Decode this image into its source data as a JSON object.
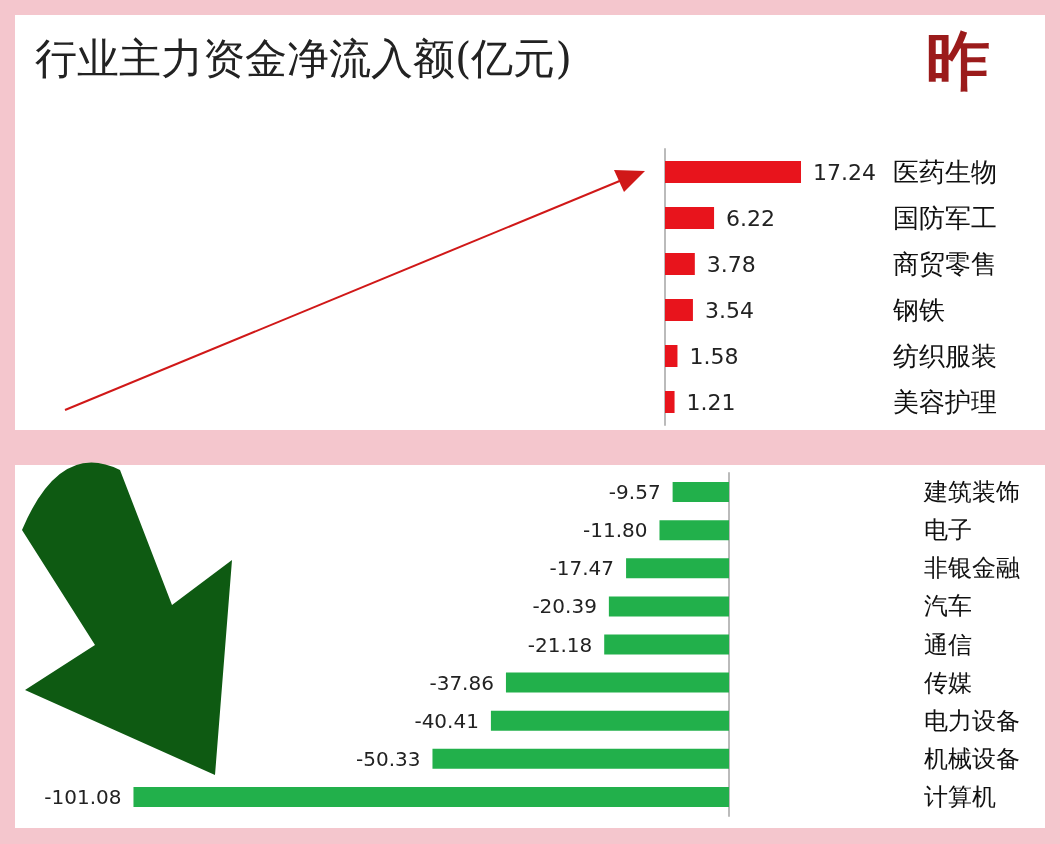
{
  "chart_data": [
    {
      "type": "bar",
      "orientation": "horizontal",
      "title": "行业主力资金净流入额(亿元)",
      "annotations": [
        "昨"
      ],
      "categories": [
        "医药生物",
        "国防军工",
        "商贸零售",
        "钢铁",
        "纺织服装",
        "美容护理"
      ],
      "values": [
        17.24,
        6.22,
        3.78,
        3.54,
        1.58,
        1.21
      ],
      "color": "#e8141c",
      "data_labels": true
    },
    {
      "type": "bar",
      "orientation": "horizontal",
      "categories": [
        "建筑装饰",
        "电子",
        "非银金融",
        "汽车",
        "通信",
        "传媒",
        "电力设备",
        "机械设备",
        "计算机"
      ],
      "values": [
        -9.57,
        -11.8,
        -17.47,
        -20.39,
        -21.18,
        -37.86,
        -40.41,
        -50.33,
        -101.08
      ],
      "value_labels": [
        "-9.57",
        "-11.80",
        "-17.47",
        "-20.39",
        "-21.18",
        "-37.86",
        "-40.41",
        "-50.33",
        "-101.08"
      ],
      "color": "#22b04b"
    }
  ]
}
